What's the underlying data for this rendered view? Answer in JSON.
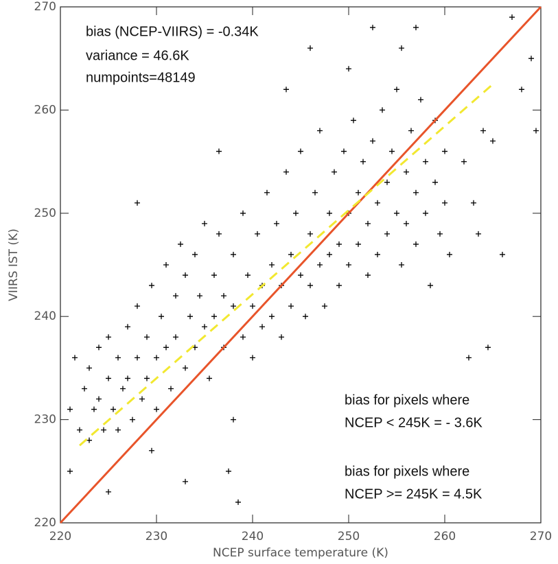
{
  "chart_data": {
    "type": "scatter",
    "xlabel": "NCEP surface temperature (K)",
    "ylabel": "VIIRS IST (K)",
    "xlim": [
      220,
      270
    ],
    "ylim": [
      220,
      270
    ],
    "xticks": [
      220,
      230,
      240,
      250,
      260,
      270
    ],
    "yticks": [
      220,
      230,
      240,
      250,
      260,
      270
    ],
    "color": "#000000",
    "x": [
      221,
      221.5,
      222,
      222.5,
      223,
      223,
      223.5,
      224,
      224,
      224.5,
      225,
      225,
      225.5,
      226,
      226,
      226.5,
      227,
      227,
      227.5,
      228,
      228,
      228.5,
      229,
      229,
      229.5,
      230,
      230,
      230.5,
      231,
      231,
      231.5,
      232,
      232,
      232.5,
      233,
      233,
      233.5,
      234,
      234,
      234.5,
      235,
      235,
      235.5,
      236,
      236,
      236.5,
      237,
      237,
      237.5,
      238,
      238,
      238.5,
      239,
      239,
      239.5,
      240,
      240,
      240.5,
      241,
      241,
      241.5,
      242,
      242,
      242.5,
      243,
      243,
      243.5,
      244,
      244,
      244.5,
      245,
      245,
      245.5,
      246,
      246,
      246.5,
      247,
      247,
      247.5,
      248,
      248,
      248.5,
      249,
      249,
      249.5,
      250,
      250,
      250.5,
      251,
      251,
      251.5,
      252,
      252,
      252.5,
      253,
      253,
      253.5,
      254,
      254,
      254.5,
      255,
      255,
      255.5,
      256,
      256,
      256.5,
      257,
      257,
      257.5,
      258,
      258,
      258.5,
      259,
      259,
      259.5,
      260,
      260,
      260.5,
      228,
      229.5,
      233,
      243.5,
      246,
      250,
      252.5,
      255.5,
      262,
      263,
      263.5,
      264,
      265,
      266,
      267,
      268,
      269,
      269.5,
      262.5,
      221,
      225,
      236.5,
      238,
      257,
      264.5
    ],
    "values": [
      231,
      236,
      229,
      233,
      235,
      228,
      231,
      237,
      232,
      229,
      234,
      238,
      231,
      236,
      229,
      233,
      239,
      234,
      230,
      236,
      241,
      232,
      238,
      234,
      243,
      236,
      231,
      240,
      245,
      237,
      233,
      242,
      238,
      247,
      235,
      244,
      240,
      237,
      246,
      242,
      239,
      249,
      234,
      244,
      240,
      248,
      237,
      242,
      225,
      246,
      241,
      222,
      238,
      250,
      244,
      241,
      236,
      248,
      243,
      239,
      252,
      245,
      240,
      249,
      243,
      238,
      254,
      246,
      241,
      250,
      244,
      256,
      240,
      248,
      243,
      252,
      245,
      258,
      241,
      250,
      246,
      254,
      247,
      243,
      256,
      250,
      245,
      259,
      252,
      247,
      255,
      249,
      244,
      257,
      251,
      246,
      260,
      253,
      248,
      256,
      250,
      262,
      245,
      254,
      249,
      258,
      252,
      247,
      261,
      255,
      250,
      243,
      253,
      259,
      248,
      256,
      251,
      246,
      251,
      227,
      224,
      262,
      266,
      264,
      268,
      266,
      255,
      251,
      248,
      258,
      257,
      246,
      269,
      262,
      265,
      258,
      236,
      225,
      223,
      256,
      230,
      268,
      237
    ],
    "lines": [
      {
        "x": [
          220,
          270
        ],
        "values": [
          220,
          270
        ],
        "color": "#e8542a",
        "dashed": false
      },
      {
        "x": [
          222,
          265
        ],
        "values": [
          227.5,
          262.5
        ],
        "color": "#f2e830",
        "dashed": true
      }
    ],
    "annotations": [
      "bias (NCEP-VIIRS) = -0.34K",
      "variance = 46.6K",
      "numpoints=48149",
      "bias for pixels where",
      "NCEP < 245K = - 3.6K",
      "bias for pixels where",
      "NCEP >= 245K = 4.5K"
    ]
  }
}
